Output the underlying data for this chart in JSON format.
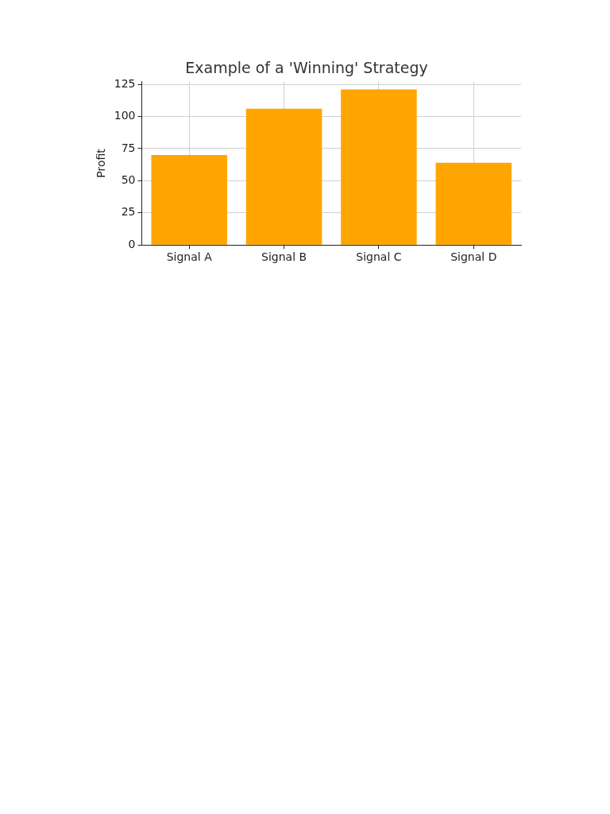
{
  "chart_data": {
    "type": "bar",
    "title": "Example of a 'Winning' Strategy",
    "ylabel": "Profit",
    "categories": [
      "Signal A",
      "Signal B",
      "Signal C",
      "Signal D"
    ],
    "values": [
      70,
      106,
      121,
      64
    ],
    "color": "#ffa500",
    "ylim": [
      0,
      127
    ],
    "yticks": [
      0,
      25,
      50,
      75,
      100,
      125
    ],
    "grid": true
  }
}
